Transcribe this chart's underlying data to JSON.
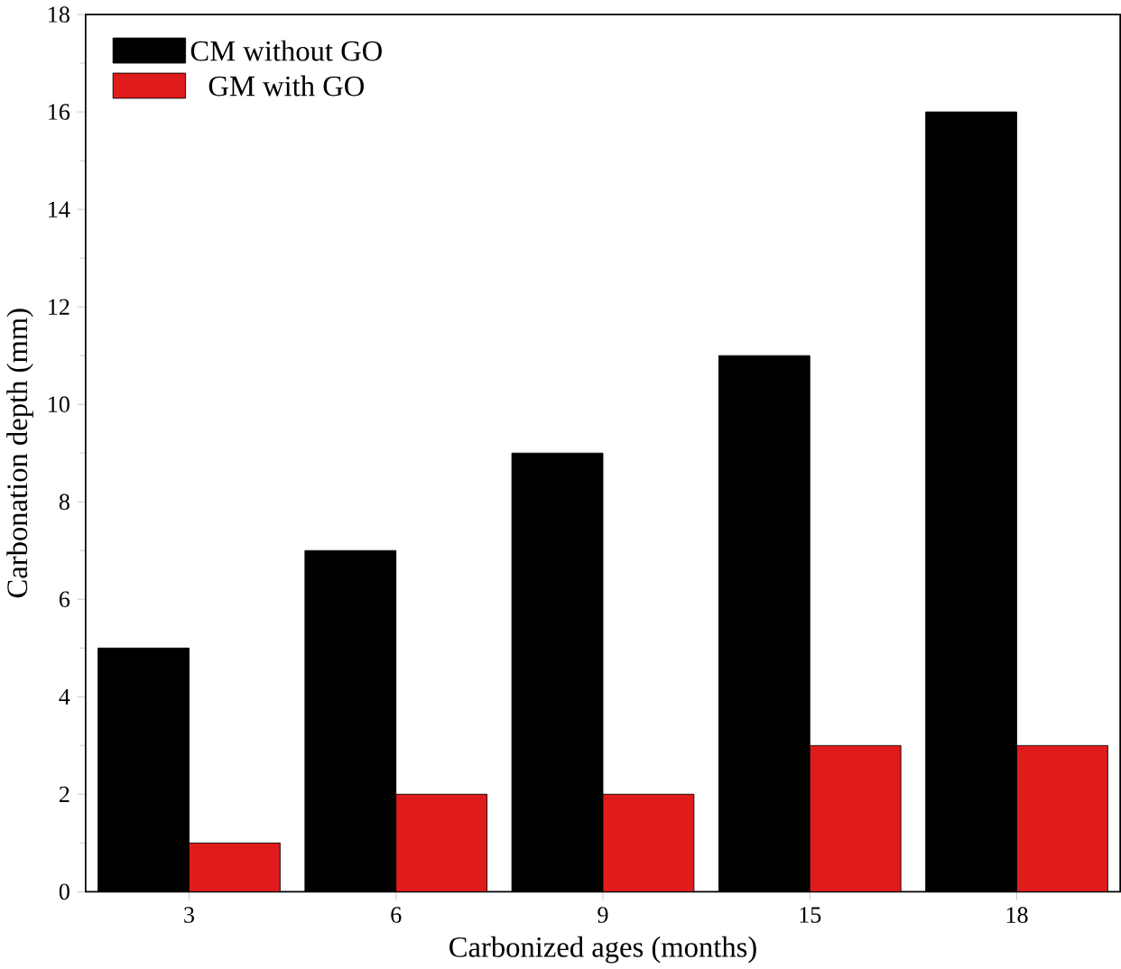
{
  "chart_data": {
    "type": "bar",
    "xlabel": "Carbonized ages (months)",
    "ylabel": "Carbonation depth (mm)",
    "categories": [
      "3",
      "6",
      "9",
      "15",
      "18"
    ],
    "series": [
      {
        "name": "CM without GO",
        "color": "#000000",
        "values": [
          5,
          7,
          9,
          11,
          16
        ]
      },
      {
        "name": "GM with GO",
        "color": "#e01b1b",
        "values": [
          1,
          2,
          2,
          3,
          3
        ]
      }
    ],
    "ylim": [
      0,
      18
    ],
    "yticks": [
      0,
      2,
      4,
      6,
      8,
      10,
      12,
      14,
      16,
      18
    ],
    "legend": "top left"
  }
}
